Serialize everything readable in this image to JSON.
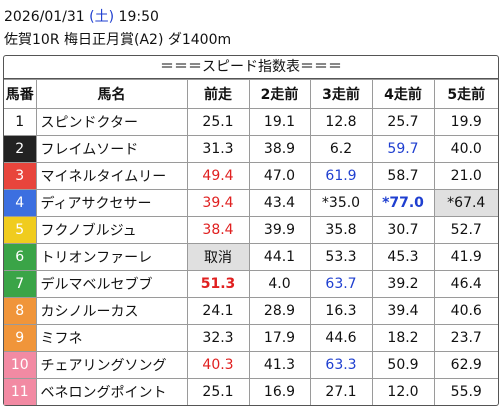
{
  "header": {
    "date": "2026/01/31",
    "weekday_open": "(",
    "weekday": "土",
    "weekday_close": ")",
    "time": "19:50",
    "race": "佐賀10R 梅日正月賞(A2) ダ1400m"
  },
  "table": {
    "title": "＝＝＝スピード指数表＝＝＝",
    "columns": [
      "馬番",
      "馬名",
      "前走",
      "2走前",
      "3走前",
      "4走前",
      "5走前"
    ],
    "rows": [
      {
        "num": "1",
        "num_bg": "#ffffff",
        "num_color": "#111111",
        "name": "スピンドクター",
        "values": [
          "25.1",
          "19.1",
          "12.8",
          "25.7",
          "19.9"
        ],
        "styles": []
      },
      {
        "num": "2",
        "num_bg": "#222222",
        "num_color": "#ffffff",
        "name": "フレイムソード",
        "values": [
          "31.3",
          "38.9",
          "6.2",
          "59.7",
          "40.0"
        ],
        "styles": [
          {
            "col": 3,
            "color": "#1f3fd0"
          }
        ]
      },
      {
        "num": "3",
        "num_bg": "#e8453c",
        "num_color": "#ffffff",
        "name": "マイネルタイムリー",
        "values": [
          "49.4",
          "47.0",
          "61.9",
          "58.7",
          "21.0"
        ],
        "styles": [
          {
            "col": 0,
            "color": "#e02020"
          },
          {
            "col": 2,
            "color": "#1f3fd0"
          }
        ]
      },
      {
        "num": "4",
        "num_bg": "#3c6fe0",
        "num_color": "#ffffff",
        "name": "ディアサクセサー",
        "values": [
          "39.4",
          "43.4",
          "*35.0",
          "*77.0",
          "*67.4"
        ],
        "styles": [
          {
            "col": 0,
            "color": "#e02020"
          },
          {
            "col": 3,
            "color": "#1f3fd0",
            "bold": true
          },
          {
            "col": 4,
            "background": "#e0e0e0"
          }
        ]
      },
      {
        "num": "5",
        "num_bg": "#f0cc1e",
        "num_color": "#ffffff",
        "name": "フクノブルジュ",
        "values": [
          "38.4",
          "39.9",
          "35.8",
          "30.7",
          "52.7"
        ],
        "styles": [
          {
            "col": 0,
            "color": "#e02020"
          }
        ]
      },
      {
        "num": "6",
        "num_bg": "#3aa447",
        "num_color": "#ffffff",
        "name": "トリオンファーレ",
        "values": [
          "取消",
          "44.1",
          "53.3",
          "45.3",
          "41.9"
        ],
        "styles": [
          {
            "col": 0,
            "background": "#e0e0e0"
          }
        ]
      },
      {
        "num": "7",
        "num_bg": "#3aa447",
        "num_color": "#ffffff",
        "name": "デルマベルセブブ",
        "values": [
          "51.3",
          "4.0",
          "63.7",
          "39.2",
          "46.4"
        ],
        "styles": [
          {
            "col": 0,
            "color": "#e02020",
            "bold": true
          },
          {
            "col": 2,
            "color": "#1f3fd0"
          }
        ]
      },
      {
        "num": "8",
        "num_bg": "#f0953a",
        "num_color": "#ffffff",
        "name": "カシノルーカス",
        "values": [
          "24.1",
          "28.9",
          "16.3",
          "39.4",
          "40.6"
        ],
        "styles": []
      },
      {
        "num": "9",
        "num_bg": "#f0953a",
        "num_color": "#ffffff",
        "name": "ミフネ",
        "values": [
          "32.3",
          "17.9",
          "44.6",
          "18.2",
          "23.7"
        ],
        "styles": []
      },
      {
        "num": "10",
        "num_bg": "#f28aa3",
        "num_color": "#ffffff",
        "name": "チェアリングソング",
        "values": [
          "40.3",
          "41.3",
          "63.3",
          "50.9",
          "62.9"
        ],
        "styles": [
          {
            "col": 0,
            "color": "#e02020"
          },
          {
            "col": 2,
            "color": "#1f3fd0"
          }
        ]
      },
      {
        "num": "11",
        "num_bg": "#f28aa3",
        "num_color": "#ffffff",
        "name": "ベネロングポイント",
        "values": [
          "25.1",
          "16.9",
          "27.1",
          "12.0",
          "55.9"
        ],
        "styles": []
      }
    ]
  }
}
